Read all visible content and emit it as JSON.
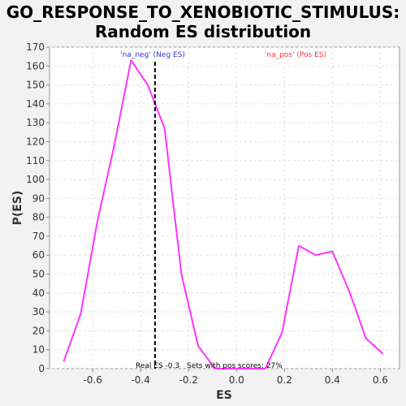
{
  "chart_data": {
    "type": "line",
    "title_lines": [
      "GO_RESPONSE_TO_XENOBIOTIC_STIMULUS:",
      "Random ES distribution"
    ],
    "xlabel": "ES",
    "ylabel": "P(ES)",
    "xlim": [
      -0.78,
      0.68
    ],
    "ylim": [
      0,
      170
    ],
    "xticks": [
      -0.6,
      -0.4,
      -0.2,
      0.0,
      0.2,
      0.4,
      0.6
    ],
    "xtick_labels": [
      "-0.6",
      "-0.4",
      "-0.2",
      "0.0",
      "0.2",
      "0.4",
      "0.6"
    ],
    "yticks": [
      0,
      10,
      20,
      30,
      40,
      50,
      60,
      70,
      80,
      90,
      100,
      110,
      120,
      130,
      140,
      150,
      160,
      170
    ],
    "ytick_labels": [
      "0",
      "10",
      "20",
      "30",
      "40",
      "50",
      "60",
      "70",
      "80",
      "90",
      "100",
      "110",
      "120",
      "130",
      "140",
      "150",
      "160",
      "170"
    ],
    "grid": true,
    "series": [
      {
        "color": "#ff33ff",
        "x": [
          -0.72,
          -0.65,
          -0.58,
          -0.51,
          -0.44,
          -0.37,
          -0.3,
          -0.23,
          -0.16,
          -0.09,
          -0.02,
          0.05,
          0.12,
          0.19,
          0.26,
          0.33,
          0.4,
          0.47,
          0.54,
          0.61
        ],
        "y": [
          4,
          29,
          78,
          118,
          163,
          150,
          127,
          50,
          12,
          0,
          0,
          0,
          0,
          19,
          65,
          60,
          62,
          41,
          16,
          8
        ]
      }
    ],
    "real_es_line": {
      "x": -0.34,
      "color": "#000000"
    },
    "annotations": {
      "neg_label": "'na_neg' (Neg ES)",
      "neg_color": "#3333cc",
      "pos_label": "'na_pos' (Pos ES)",
      "pos_color": "#ff3333",
      "real_es": "Real ES -0.3",
      "pos_scores": "Sets with pos scores: 27%"
    }
  }
}
